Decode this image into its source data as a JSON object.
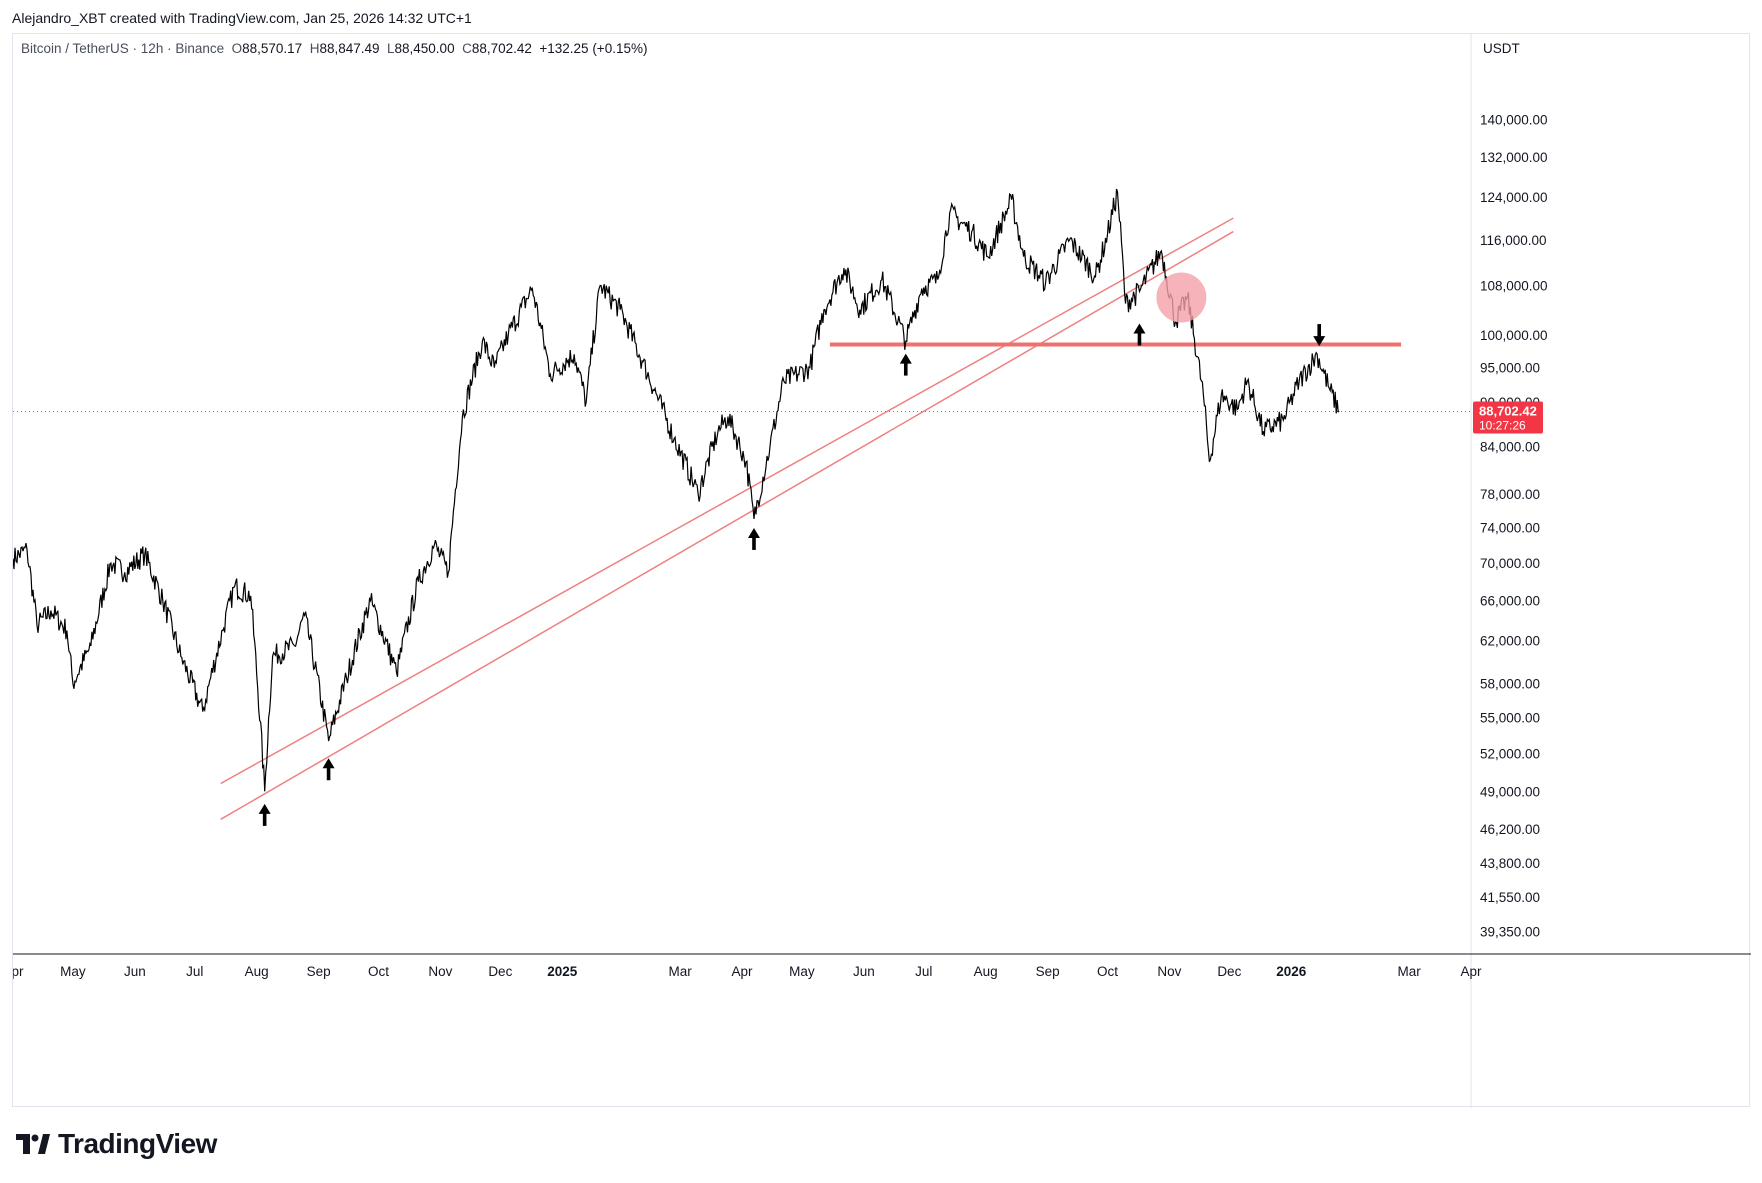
{
  "header": {
    "credit": "Alejandro_XBT created with TradingView.com, Jan 25, 2026 14:32 UTC+1"
  },
  "legend": {
    "symbol": "Bitcoin / TetherUS · 12h · Binance",
    "open_label": "O",
    "open": "88,570.17",
    "high_label": "H",
    "high": "88,847.49",
    "low_label": "L",
    "low": "88,450.00",
    "close_label": "C",
    "close": "88,702.42",
    "change": "+132.25 (+0.15%)"
  },
  "price_scale": {
    "currency": "USDT",
    "last_price": "88,702.42",
    "countdown": "10:27:26"
  },
  "brand": {
    "name": "TradingView"
  },
  "colors": {
    "candle": "#000000",
    "trendline": "#f08080",
    "support": "#f07070",
    "marker_circle": "#f4a0a8",
    "last_price_bg": "#f23645",
    "grid_dotted": "#e05050"
  },
  "chart_data": {
    "type": "line",
    "title": "Bitcoin / TetherUS · 12h · Binance",
    "scale": "log",
    "ylim": [
      38000,
      160000
    ],
    "y_ticks": [
      {
        "v": 140000,
        "label": "140,000.00"
      },
      {
        "v": 132000,
        "label": "132,000.00"
      },
      {
        "v": 124000,
        "label": "124,000.00"
      },
      {
        "v": 116000,
        "label": "116,000.00"
      },
      {
        "v": 108000,
        "label": "108,000.00"
      },
      {
        "v": 100000,
        "label": "100,000.00"
      },
      {
        "v": 95000,
        "label": "95,000.00"
      },
      {
        "v": 90000,
        "label": "90,000.00"
      },
      {
        "v": 84000,
        "label": "84,000.00"
      },
      {
        "v": 78000,
        "label": "78,000.00"
      },
      {
        "v": 74000,
        "label": "74,000.00"
      },
      {
        "v": 70000,
        "label": "70,000.00"
      },
      {
        "v": 66000,
        "label": "66,000.00"
      },
      {
        "v": 62000,
        "label": "62,000.00"
      },
      {
        "v": 58000,
        "label": "58,000.00"
      },
      {
        "v": 55000,
        "label": "55,000.00"
      },
      {
        "v": 52000,
        "label": "52,000.00"
      },
      {
        "v": 49000,
        "label": "49,000.00"
      },
      {
        "v": 46200,
        "label": "46,200.00"
      },
      {
        "v": 43800,
        "label": "43,800.00"
      },
      {
        "v": 41550,
        "label": "41,550.00"
      },
      {
        "v": 39350,
        "label": "39,350.00"
      }
    ],
    "x_ticks": [
      {
        "t": "2024-04-01",
        "label": "Apr",
        "bold": false
      },
      {
        "t": "2024-05-01",
        "label": "May",
        "bold": false
      },
      {
        "t": "2024-06-01",
        "label": "Jun",
        "bold": false
      },
      {
        "t": "2024-07-01",
        "label": "Jul",
        "bold": false
      },
      {
        "t": "2024-08-01",
        "label": "Aug",
        "bold": false
      },
      {
        "t": "2024-09-01",
        "label": "Sep",
        "bold": false
      },
      {
        "t": "2024-10-01",
        "label": "Oct",
        "bold": false
      },
      {
        "t": "2024-11-01",
        "label": "Nov",
        "bold": false
      },
      {
        "t": "2024-12-01",
        "label": "Dec",
        "bold": false
      },
      {
        "t": "2025-01-01",
        "label": "2025",
        "bold": true
      },
      {
        "t": "2025-03-01",
        "label": "Mar",
        "bold": false
      },
      {
        "t": "2025-04-01",
        "label": "Apr",
        "bold": false
      },
      {
        "t": "2025-05-01",
        "label": "May",
        "bold": false
      },
      {
        "t": "2025-06-01",
        "label": "Jun",
        "bold": false
      },
      {
        "t": "2025-07-01",
        "label": "Jul",
        "bold": false
      },
      {
        "t": "2025-08-01",
        "label": "Aug",
        "bold": false
      },
      {
        "t": "2025-09-01",
        "label": "Sep",
        "bold": false
      },
      {
        "t": "2025-10-01",
        "label": "Oct",
        "bold": false
      },
      {
        "t": "2025-11-01",
        "label": "Nov",
        "bold": false
      },
      {
        "t": "2025-12-01",
        "label": "Dec",
        "bold": false
      },
      {
        "t": "2026-01-01",
        "label": "2026",
        "bold": true
      },
      {
        "t": "2026-03-01",
        "label": "Mar",
        "bold": false
      },
      {
        "t": "2026-04-01",
        "label": "Apr",
        "bold": false
      }
    ],
    "xlim": [
      "2024-04-01",
      "2026-04-01"
    ],
    "series": [
      {
        "values": [
          [
            "2024-04-01",
            70500
          ],
          [
            "2024-04-08",
            71500
          ],
          [
            "2024-04-13",
            63500
          ],
          [
            "2024-04-20",
            65000
          ],
          [
            "2024-04-28",
            63000
          ],
          [
            "2024-05-01",
            58000
          ],
          [
            "2024-05-10",
            61500
          ],
          [
            "2024-05-20",
            70000
          ],
          [
            "2024-05-27",
            69000
          ],
          [
            "2024-06-06",
            71000
          ],
          [
            "2024-06-15",
            66000
          ],
          [
            "2024-06-24",
            60500
          ],
          [
            "2024-07-05",
            55500
          ],
          [
            "2024-07-15",
            63000
          ],
          [
            "2024-07-21",
            67500
          ],
          [
            "2024-07-29",
            66500
          ],
          [
            "2024-08-05",
            49000
          ],
          [
            "2024-08-09",
            60500
          ],
          [
            "2024-08-20",
            61500
          ],
          [
            "2024-08-25",
            64500
          ],
          [
            "2024-09-06",
            53000
          ],
          [
            "2024-09-15",
            58500
          ],
          [
            "2024-09-27",
            66000
          ],
          [
            "2024-10-10",
            59000
          ],
          [
            "2024-10-21",
            68000
          ],
          [
            "2024-10-29",
            72000
          ],
          [
            "2024-11-05",
            69000
          ],
          [
            "2024-11-12",
            88000
          ],
          [
            "2024-11-22",
            99000
          ],
          [
            "2024-11-28",
            95000
          ],
          [
            "2024-12-05",
            100000
          ],
          [
            "2024-12-17",
            107500
          ],
          [
            "2024-12-26",
            94000
          ],
          [
            "2025-01-07",
            97000
          ],
          [
            "2025-01-13",
            90000
          ],
          [
            "2025-01-20",
            108000
          ],
          [
            "2025-01-30",
            104000
          ],
          [
            "2025-02-10",
            96000
          ],
          [
            "2025-02-26",
            85000
          ],
          [
            "2025-03-10",
            78000
          ],
          [
            "2025-03-20",
            86000
          ],
          [
            "2025-03-25",
            88000
          ],
          [
            "2025-04-03",
            82000
          ],
          [
            "2025-04-07",
            75000
          ],
          [
            "2025-04-15",
            84000
          ],
          [
            "2025-04-22",
            93000
          ],
          [
            "2025-05-05",
            95000
          ],
          [
            "2025-05-12",
            104000
          ],
          [
            "2025-05-22",
            111000
          ],
          [
            "2025-05-30",
            104000
          ],
          [
            "2025-06-10",
            109000
          ],
          [
            "2025-06-22",
            99000
          ],
          [
            "2025-06-30",
            107500
          ],
          [
            "2025-07-08",
            109000
          ],
          [
            "2025-07-14",
            121000
          ],
          [
            "2025-07-25",
            117500
          ],
          [
            "2025-08-02",
            113000
          ],
          [
            "2025-08-14",
            123500
          ],
          [
            "2025-08-20",
            113000
          ],
          [
            "2025-08-31",
            108500
          ],
          [
            "2025-09-12",
            116000
          ],
          [
            "2025-09-25",
            109500
          ],
          [
            "2025-10-01",
            117000
          ],
          [
            "2025-10-06",
            125000
          ],
          [
            "2025-10-10",
            105000
          ],
          [
            "2025-10-17",
            107000
          ],
          [
            "2025-10-28",
            114000
          ],
          [
            "2025-11-04",
            102000
          ],
          [
            "2025-11-10",
            106000
          ],
          [
            "2025-11-18",
            91000
          ],
          [
            "2025-11-21",
            82000
          ],
          [
            "2025-11-27",
            91000
          ],
          [
            "2025-12-05",
            89000
          ],
          [
            "2025-12-10",
            93000
          ],
          [
            "2025-12-18",
            86000
          ],
          [
            "2025-12-28",
            87500
          ],
          [
            "2026-01-05",
            93000
          ],
          [
            "2026-01-14",
            97000
          ],
          [
            "2026-01-20",
            92000
          ],
          [
            "2026-01-25",
            88702
          ]
        ]
      }
    ],
    "trend_lines": [
      {
        "points": [
          [
            "2024-07-14",
            49600
          ],
          [
            "2025-12-03",
            120000
          ]
        ]
      },
      {
        "points": [
          [
            "2024-07-14",
            46900
          ],
          [
            "2025-12-03",
            117500
          ]
        ]
      }
    ],
    "horizontal_levels": [
      {
        "value": 98500,
        "from": "2025-05-15",
        "to": "2026-02-25"
      }
    ],
    "arrows": [
      {
        "t": "2024-08-05",
        "y": 47300,
        "dir": "up"
      },
      {
        "t": "2024-09-06",
        "y": 50800,
        "dir": "up"
      },
      {
        "t": "2025-04-07",
        "y": 72800,
        "dir": "up"
      },
      {
        "t": "2025-06-22",
        "y": 95600,
        "dir": "up"
      },
      {
        "t": "2025-10-17",
        "y": 100200,
        "dir": "up"
      },
      {
        "t": "2026-01-15",
        "y": 99800,
        "dir": "down"
      }
    ],
    "circle_marker": {
      "t": "2025-11-07",
      "y": 106000
    },
    "last_price": 88702.42
  }
}
